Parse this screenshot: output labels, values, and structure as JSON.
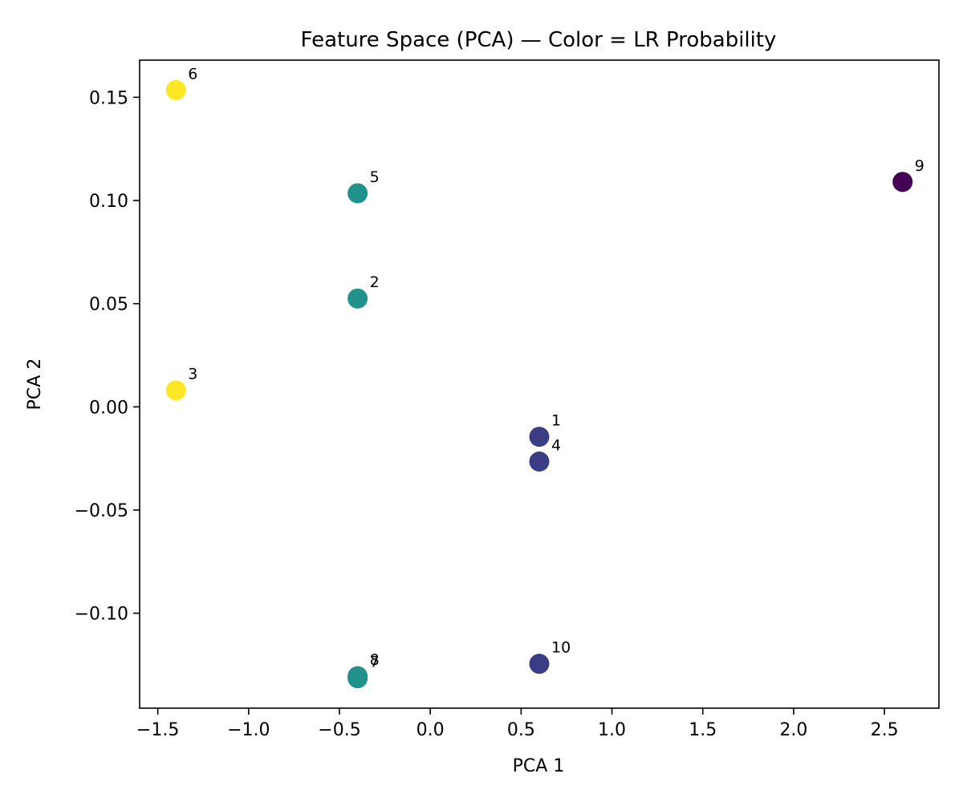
{
  "chart_data": {
    "type": "scatter",
    "title": "Feature Space (PCA) — Color = LR Probability",
    "xlabel": "PCA 1",
    "ylabel": "PCA 2",
    "xlim": [
      -1.6,
      2.8
    ],
    "ylim": [
      -0.146,
      0.168
    ],
    "grid": false,
    "x_ticks": [
      -1.5,
      -1.0,
      -0.5,
      0.0,
      0.5,
      1.0,
      1.5,
      2.0,
      2.5
    ],
    "x_tick_labels": [
      "−1.5",
      "−1.0",
      "−0.5",
      "0.0",
      "0.5",
      "1.0",
      "1.5",
      "2.0",
      "2.5"
    ],
    "y_ticks": [
      -0.1,
      -0.05,
      0.0,
      0.05,
      0.1,
      0.15
    ],
    "y_tick_labels": [
      "−0.10",
      "−0.05",
      "0.00",
      "0.05",
      "0.10",
      "0.15"
    ],
    "colors": {
      "yellow": "#fde725",
      "teal": "#21918c",
      "blue": "#3b3c84",
      "purple": "#440154"
    },
    "points": [
      {
        "label": "1",
        "x": 0.6,
        "y": -0.0145,
        "color": "blue"
      },
      {
        "label": "2",
        "x": -0.4,
        "y": 0.0525,
        "color": "teal"
      },
      {
        "label": "3",
        "x": -1.4,
        "y": 0.008,
        "color": "yellow"
      },
      {
        "label": "4",
        "x": 0.6,
        "y": -0.0265,
        "color": "blue"
      },
      {
        "label": "5",
        "x": -0.4,
        "y": 0.1035,
        "color": "teal"
      },
      {
        "label": "6",
        "x": -1.4,
        "y": 0.1535,
        "color": "yellow"
      },
      {
        "label": "7",
        "x": -0.4,
        "y": -0.1315,
        "color": "teal"
      },
      {
        "label": "8",
        "x": -0.4,
        "y": -0.1305,
        "color": "teal"
      },
      {
        "label": "9",
        "x": 2.6,
        "y": 0.109,
        "color": "purple"
      },
      {
        "label": "10",
        "x": 0.6,
        "y": -0.1245,
        "color": "blue"
      }
    ]
  }
}
